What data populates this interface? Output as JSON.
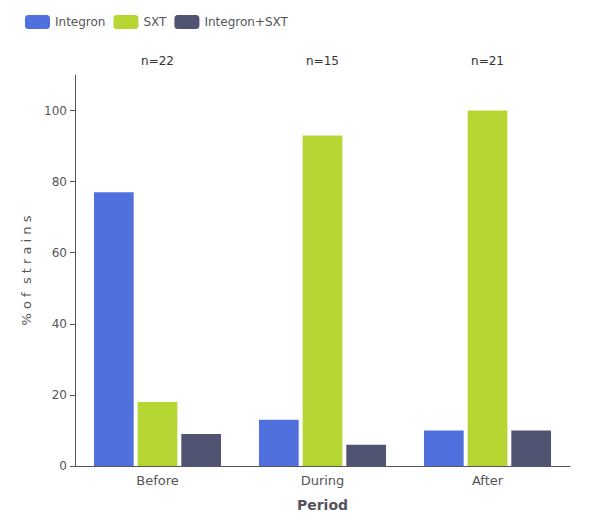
{
  "chart_data": {
    "type": "bar",
    "categories": [
      "Before",
      "During",
      "After"
    ],
    "series": [
      {
        "name": "Integron",
        "values": [
          77,
          13,
          10
        ]
      },
      {
        "name": "SXT",
        "values": [
          18,
          93,
          100
        ]
      },
      {
        "name": "Integron+SXT",
        "values": [
          9,
          6,
          10
        ]
      }
    ],
    "annotations": [
      "n=22",
      "n=15",
      "n=21"
    ],
    "xlabel": "Period",
    "ylabel": "% o f  s t r a i n s",
    "ylim": [
      0,
      110
    ],
    "yticks": [
      0,
      20,
      40,
      60,
      80,
      100
    ],
    "grid": false,
    "legend": "upper left"
  }
}
